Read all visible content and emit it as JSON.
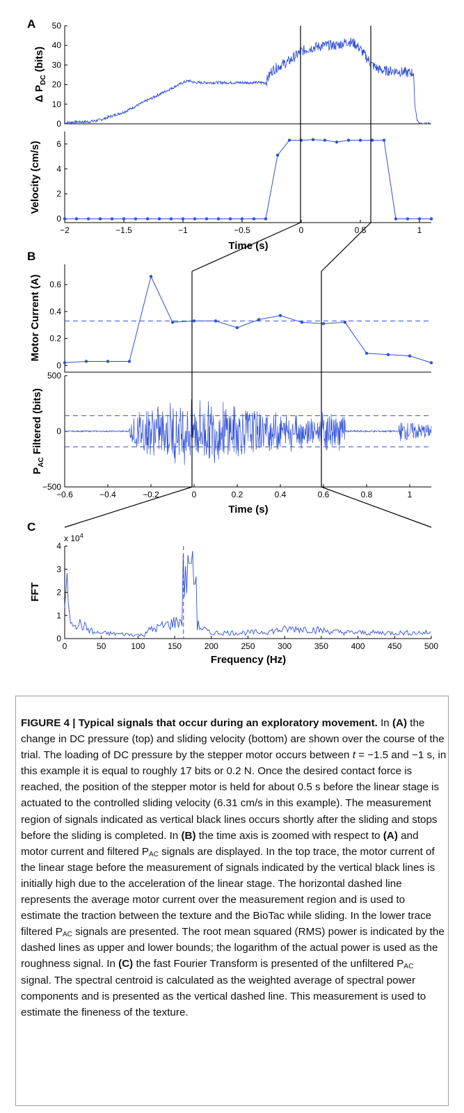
{
  "figure": {
    "panels": {
      "a": "A",
      "b": "B",
      "c": "C"
    },
    "exponent": "x 10",
    "exponent_power": "4"
  },
  "chart_data": [
    {
      "id": "A-top",
      "type": "line",
      "ylabel": "Δ P_DC (bits)",
      "xlim": [
        -2,
        1.1
      ],
      "ylim": [
        0,
        50
      ],
      "yticks": [
        "0",
        "10",
        "20",
        "30",
        "40",
        "50"
      ],
      "series": [
        {
          "x": [
            -2,
            -1.9,
            -1.8,
            -1.7,
            -1.6,
            -1.5,
            -1.4,
            -1.3,
            -1.2,
            -1.1,
            -1.0,
            -0.95,
            -0.9,
            -0.8,
            -0.7,
            -0.6,
            -0.5,
            -0.4,
            -0.3,
            -0.25,
            -0.2,
            -0.1,
            0,
            0.1,
            0.2,
            0.3,
            0.4,
            0.45,
            0.5,
            0.55,
            0.6,
            0.65,
            0.7,
            0.8,
            0.9,
            0.95,
            0.96,
            0.98,
            1.0,
            1.1
          ],
          "y": [
            0.5,
            1,
            1,
            2,
            4,
            6,
            9,
            12,
            15,
            18,
            21,
            22,
            21,
            21,
            21,
            21,
            21,
            21,
            21,
            27,
            29,
            32,
            37,
            39,
            40,
            40,
            42,
            41,
            38,
            34,
            30,
            28,
            27,
            27,
            26,
            26,
            10,
            2,
            0,
            0
          ]
        }
      ]
    },
    {
      "id": "A-bottom",
      "type": "line",
      "xlabel": "Time (s)",
      "ylabel": "Velocity (cm/s)",
      "xlim": [
        -2,
        1.1
      ],
      "ylim": [
        -0.3,
        7
      ],
      "xticks": [
        "-2",
        "-1.5",
        "-1",
        "-0.5",
        "0",
        "0.5",
        "1"
      ],
      "yticks": [
        "0",
        "2",
        "4",
        "6"
      ],
      "series": [
        {
          "x": [
            -2,
            -1.9,
            -1.8,
            -1.7,
            -1.6,
            -1.5,
            -1.4,
            -1.3,
            -1.2,
            -1.1,
            -1.0,
            -0.9,
            -0.8,
            -0.7,
            -0.6,
            -0.5,
            -0.4,
            -0.3,
            -0.2,
            -0.1,
            0,
            0.1,
            0.2,
            0.3,
            0.4,
            0.5,
            0.6,
            0.7,
            0.8,
            0.9,
            1.0,
            1.1
          ],
          "y": [
            0,
            0,
            0,
            0,
            0,
            0,
            0,
            0,
            0,
            0,
            0,
            0,
            0,
            0,
            0,
            0,
            0,
            0,
            5.1,
            6.3,
            6.3,
            6.35,
            6.3,
            6.15,
            6.3,
            6.3,
            6.3,
            6.3,
            0,
            0,
            0,
            0
          ]
        }
      ]
    },
    {
      "id": "B-top",
      "type": "line",
      "ylabel": "Motor Current (A)",
      "xlim": [
        -0.6,
        1.1
      ],
      "ylim": [
        -0.05,
        0.75
      ],
      "yticks": [
        "0",
        "0.2",
        "0.4",
        "0.6"
      ],
      "mean_line": 0.33,
      "series": [
        {
          "x": [
            -0.6,
            -0.5,
            -0.4,
            -0.3,
            -0.2,
            -0.1,
            0,
            0.1,
            0.2,
            0.3,
            0.4,
            0.5,
            0.6,
            0.7,
            0.8,
            0.9,
            1.0,
            1.1
          ],
          "y": [
            0.02,
            0.03,
            0.03,
            0.03,
            0.66,
            0.32,
            0.33,
            0.33,
            0.28,
            0.34,
            0.37,
            0.32,
            0.31,
            0.32,
            0.09,
            0.08,
            0.07,
            0.02
          ]
        }
      ]
    },
    {
      "id": "B-bottom",
      "type": "line",
      "xlabel": "Time (s)",
      "ylabel": "P_AC Filtered (bits)",
      "xlim": [
        -0.6,
        1.1
      ],
      "ylim": [
        -500,
        500
      ],
      "xticks": [
        "-0.6",
        "-0.4",
        "-0.2",
        "0",
        "0.2",
        "0.4",
        "0.6",
        "0.8",
        "1"
      ],
      "yticks": [
        "-500",
        "0",
        "500"
      ],
      "rms_bounds": [
        -140,
        140
      ]
    },
    {
      "id": "C",
      "type": "line",
      "xlabel": "Frequency (Hz)",
      "ylabel": "FFT",
      "xlim": [
        0,
        500
      ],
      "ylim": [
        0,
        40000
      ],
      "xticks": [
        "0",
        "50",
        "100",
        "150",
        "200",
        "250",
        "300",
        "350",
        "400",
        "450",
        "500"
      ],
      "yticks": [
        "0",
        "1",
        "2",
        "3",
        "4"
      ],
      "centroid_hz": 162
    }
  ],
  "caption": {
    "title": "FIGURE 4 | Typical signals that occur during an exploratory movement.",
    "text_1": " In ",
    "bold_a": "(A)",
    "text_2": " the change in DC pressure (top) and sliding velocity (bottom) are shown over the course of the trial. The loading of DC pressure by the stepper motor occurs between ",
    "t_var": "t",
    "text_3": " = −1.5 and −1 s, in this example it is equal to roughly 17 bits or 0.2 N. Once the desired contact force is reached, the position of the stepper motor is held for about 0.5 s before the linear stage is actuated to the controlled sliding velocity (6.31 cm/s in this example). The measurement region of signals indicated as vertical black lines occurs shortly after the sliding and stops before the sliding is completed. In ",
    "bold_b": "(B)",
    "text_4": " the time axis is zoomed with respect to ",
    "bold_a2": "(A)",
    "text_5": " and motor current and filtered P",
    "sub_ac1": "AC",
    "text_6": " signals are displayed. In the top trace, the motor current of the linear stage before the measurement of signals indicated by the vertical black lines is initially high due to the acceleration of the linear stage. The horizontal dashed line represents the average motor current over the measurement region and is used to estimate the traction between the texture and the BioTac while sliding. In the lower trace filtered P",
    "sub_ac2": "AC",
    "text_7": " signals are presented. The root mean squared (RMS) power is indicated by the dashed lines as upper and lower bounds; the logarithm of the actual power is used as the roughness signal. In ",
    "bold_c": "(C)",
    "text_8": " the fast Fourier Transform is presented of the unfiltered P",
    "sub_ac3": "AC",
    "text_9": " signal. The spectral centroid is calculated as the weighted average of spectral power components and is presented as the vertical dashed line. This measurement is used to estimate the fineness of the texture."
  }
}
